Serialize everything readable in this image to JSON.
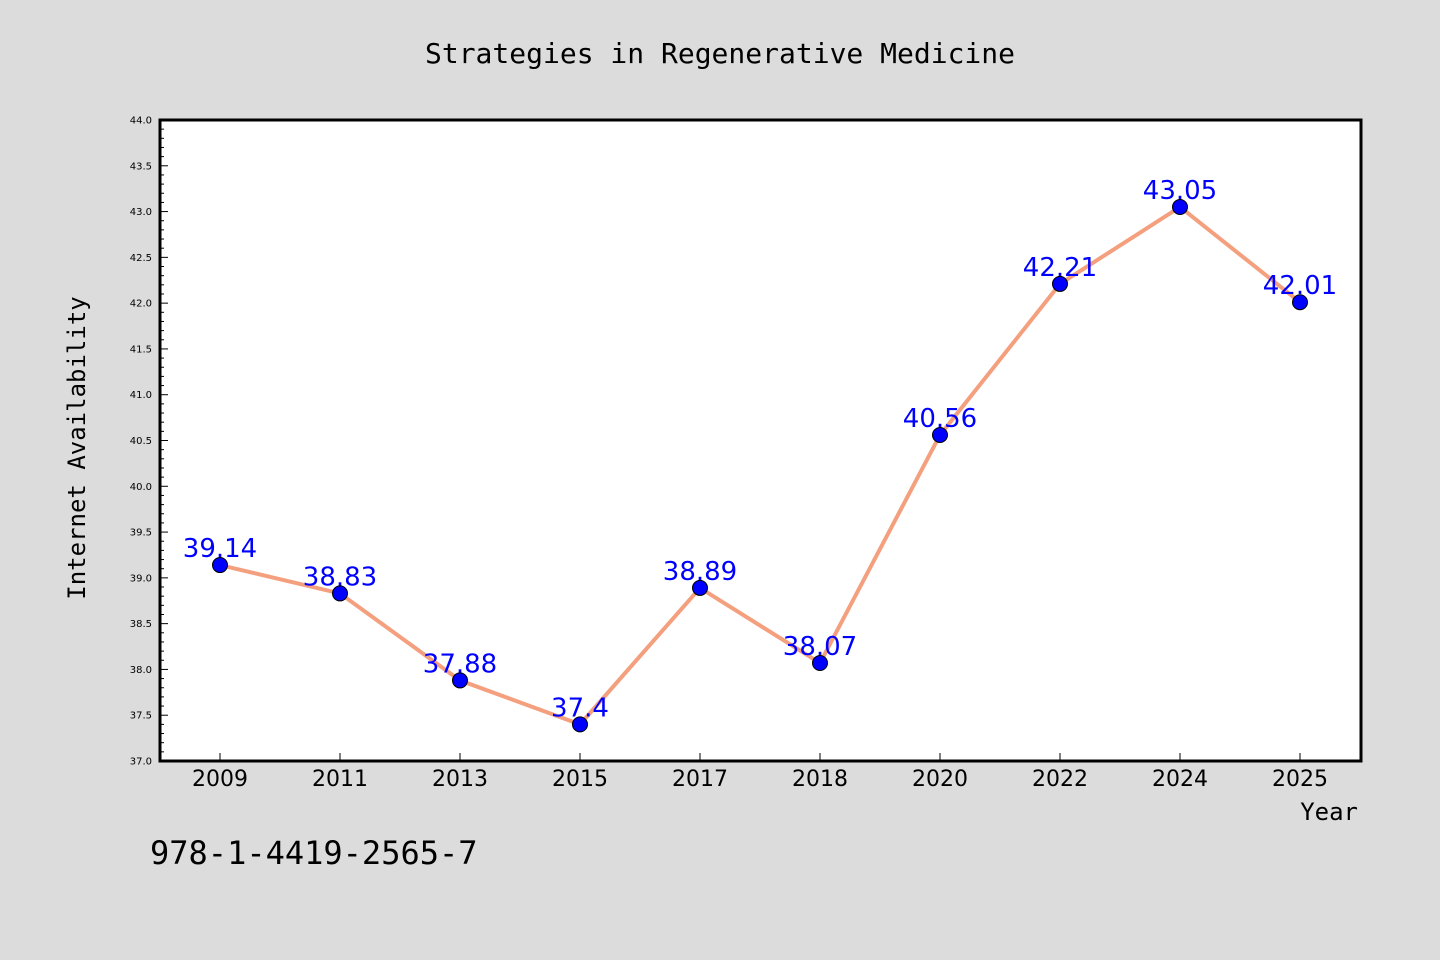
{
  "colors": {
    "background": "#dcdcdc",
    "plot_background": "#ffffff",
    "line": "#f4a07e",
    "marker": "#0000ff",
    "label": "#0000ff",
    "text": "#000000"
  },
  "footer_text": "978-1-4419-2565-7",
  "chart_data": {
    "type": "line",
    "title": "Strategies in Regenerative Medicine",
    "xlabel": "Year",
    "ylabel": "Internet Availability",
    "categories": [
      "2009",
      "2011",
      "2013",
      "2015",
      "2017",
      "2018",
      "2020",
      "2022",
      "2024",
      "2025"
    ],
    "series": [
      {
        "values": [
          39.14,
          38.83,
          37.88,
          37.4,
          38.89,
          38.07,
          40.56,
          42.21,
          43.05,
          42.01
        ],
        "data_labels": [
          "39.14",
          "38.83",
          "37.88",
          "37.4",
          "38.89",
          "38.07",
          "40.56",
          "42.21",
          "43.05",
          "42.01"
        ]
      }
    ],
    "ylim": [
      37.0,
      44.0
    ],
    "yticks": [
      "37.0",
      "37.5",
      "38.0",
      "38.5",
      "39.0",
      "39.5",
      "40.0",
      "40.5",
      "41.0",
      "41.5",
      "42.0",
      "42.5",
      "43.0",
      "43.5",
      "44.0"
    ],
    "grid": false,
    "legend": "none"
  }
}
